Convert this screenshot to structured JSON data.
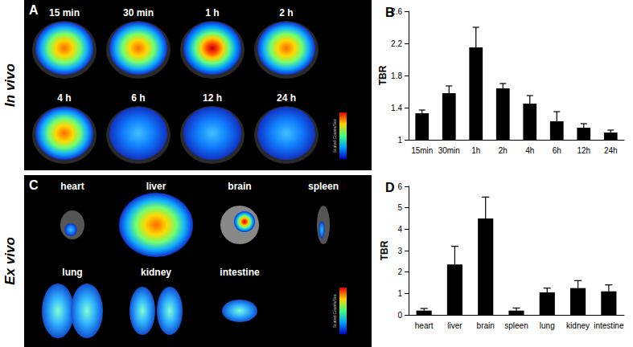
{
  "images": [
    {
      "letter": "A",
      "side_label": "In vivo",
      "colorbar_label": "Scaled Counts/Sec",
      "labels": [
        "15 min",
        "30 min",
        "1 h",
        "2 h",
        "4 h",
        "6 h",
        "12 h",
        "24 h"
      ]
    },
    {
      "letter": "C",
      "side_label": "Ex vivo",
      "colorbar_label": "Scaled Counts/Sec",
      "labels": [
        "heart",
        "liver",
        "brain",
        "spleen",
        "lung",
        "kidney",
        "intestine"
      ]
    }
  ],
  "chart_data": [
    {
      "type": "bar",
      "title": "B",
      "y_label": "TBR",
      "categories": [
        "15min",
        "30min",
        "1h",
        "2h",
        "4h",
        "6h",
        "12h",
        "24h"
      ],
      "values": [
        1.33,
        1.58,
        2.15,
        1.64,
        1.45,
        1.23,
        1.15,
        1.09
      ],
      "errors": [
        0.04,
        0.09,
        0.25,
        0.06,
        0.1,
        0.12,
        0.05,
        0.03
      ],
      "color": "#000000",
      "ylim": [
        1,
        2.6
      ],
      "yticks": [
        1,
        1.4,
        1.8,
        2.2,
        2.6
      ],
      "grid": false
    },
    {
      "type": "bar",
      "title": "D",
      "y_label": "TBR",
      "categories": [
        "heart",
        "liver",
        "brain",
        "spleen",
        "lung",
        "kidney",
        "intestine"
      ],
      "values": [
        0.2,
        2.35,
        4.5,
        0.2,
        1.05,
        1.25,
        1.1
      ],
      "errors": [
        0.1,
        0.85,
        1.0,
        0.12,
        0.2,
        0.35,
        0.3
      ],
      "color": "#000000",
      "ylim": [
        0,
        6
      ],
      "yticks": [
        0,
        1,
        2,
        3,
        4,
        5,
        6
      ],
      "grid": false
    }
  ]
}
